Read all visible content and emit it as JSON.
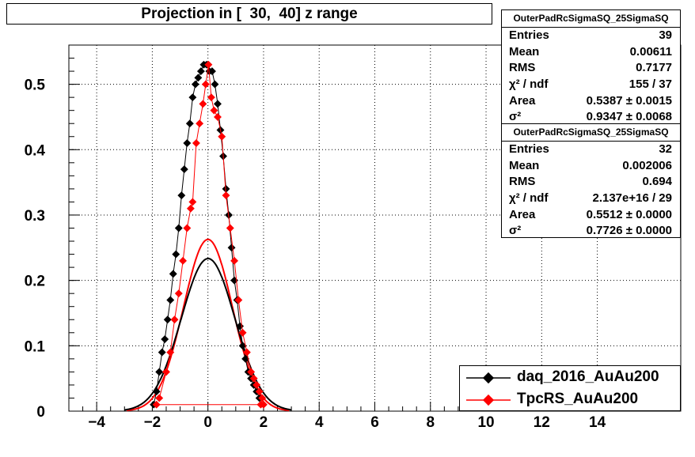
{
  "title": "Projection in [  30,  40] z range",
  "stats_boxes": [
    {
      "header": "OuterPadRcSigmaSQ_25SigmaSQ",
      "rows": [
        {
          "label": "Entries",
          "value": "39"
        },
        {
          "label": "Mean",
          "value": "0.00611"
        },
        {
          "label": "RMS",
          "value": "0.7177"
        },
        {
          "label": "χ² / ndf",
          "value": "155 / 37"
        },
        {
          "label": "Area",
          "value": "0.5387 ± 0.0015"
        },
        {
          "label": "σ²",
          "value": "0.9347 ± 0.0068"
        }
      ]
    },
    {
      "header": "OuterPadRcSigmaSQ_25SigmaSQ",
      "rows": [
        {
          "label": "Entries",
          "value": "32"
        },
        {
          "label": "Mean",
          "value": "0.002006"
        },
        {
          "label": "RMS",
          "value": "0.694"
        },
        {
          "label": "χ² / ndf",
          "value": "2.137e+16 / 29"
        },
        {
          "label": "Area",
          "value": "0.5512 ± 0.0000"
        },
        {
          "label": "σ²",
          "value": "0.7726 ± 0.0000"
        }
      ]
    }
  ],
  "legend": [
    {
      "name": "daq_2016_AuAu200",
      "color": "#000000"
    },
    {
      "name": "TpcRS_AuAu200",
      "color": "#ff0000"
    }
  ],
  "chart_data": {
    "type": "scatter",
    "title": "Projection in [  30,  40] z range",
    "xlim": [
      -5,
      17
    ],
    "ylim": [
      0,
      0.56
    ],
    "x_ticks": [
      "−4",
      "−2",
      "0",
      "2",
      "4",
      "6",
      "8",
      "10",
      "12",
      "14"
    ],
    "x_tick_values": [
      -4,
      -2,
      0,
      2,
      4,
      6,
      8,
      10,
      12,
      14
    ],
    "y_ticks": [
      "0",
      "0.1",
      "0.2",
      "0.3",
      "0.4",
      "0.5"
    ],
    "y_tick_values": [
      0,
      0.1,
      0.2,
      0.3,
      0.4,
      0.5
    ],
    "grid": true,
    "legend_position": "bottom-right",
    "series": [
      {
        "name": "daq_2016_AuAu200",
        "color": "#000000",
        "fit": {
          "area": 0.5387,
          "sigma2": 0.9347,
          "mean": 0.00611
        },
        "x": [
          -1.95,
          -1.85,
          -1.75,
          -1.65,
          -1.55,
          -1.45,
          -1.35,
          -1.25,
          -1.15,
          -1.05,
          -0.95,
          -0.85,
          -0.75,
          -0.65,
          -0.55,
          -0.45,
          -0.35,
          -0.25,
          -0.15,
          -0.05,
          0.05,
          0.15,
          0.25,
          0.35,
          0.45,
          0.55,
          0.65,
          0.75,
          0.85,
          0.95,
          1.05,
          1.15,
          1.25,
          1.35,
          1.45,
          1.55,
          1.65,
          1.75,
          1.85
        ],
        "y": [
          0.01,
          0.03,
          0.06,
          0.09,
          0.11,
          0.14,
          0.17,
          0.21,
          0.24,
          0.28,
          0.33,
          0.37,
          0.41,
          0.44,
          0.48,
          0.5,
          0.51,
          0.52,
          0.53,
          0.53,
          0.52,
          0.52,
          0.5,
          0.47,
          0.43,
          0.39,
          0.34,
          0.3,
          0.25,
          0.2,
          0.17,
          0.13,
          0.1,
          0.08,
          0.06,
          0.05,
          0.04,
          0.03,
          0.02
        ]
      },
      {
        "name": "TpcRS_AuAu200",
        "color": "#ff0000",
        "fit": {
          "area": 0.5512,
          "sigma2": 0.7726,
          "mean": 0.002006
        },
        "x": [
          -1.75,
          -1.5,
          -1.35,
          -1.2,
          -1.05,
          -0.9,
          -0.75,
          -0.62,
          -0.55,
          -0.42,
          -0.3,
          -0.18,
          -0.08,
          0.02,
          0.12,
          0.22,
          0.35,
          0.5,
          0.65,
          0.8,
          0.95,
          1.1,
          1.25,
          1.4,
          1.55,
          1.65,
          1.75,
          1.85,
          1.95,
          2.0,
          1.9,
          -1.85
        ],
        "y": [
          0.02,
          0.06,
          0.09,
          0.14,
          0.18,
          0.23,
          0.28,
          0.31,
          0.32,
          0.41,
          0.44,
          0.47,
          0.5,
          0.53,
          0.48,
          0.46,
          0.45,
          0.42,
          0.33,
          0.28,
          0.23,
          0.17,
          0.12,
          0.09,
          0.06,
          0.05,
          0.04,
          0.03,
          0.02,
          0.01,
          0.01,
          0.01
        ]
      }
    ]
  }
}
